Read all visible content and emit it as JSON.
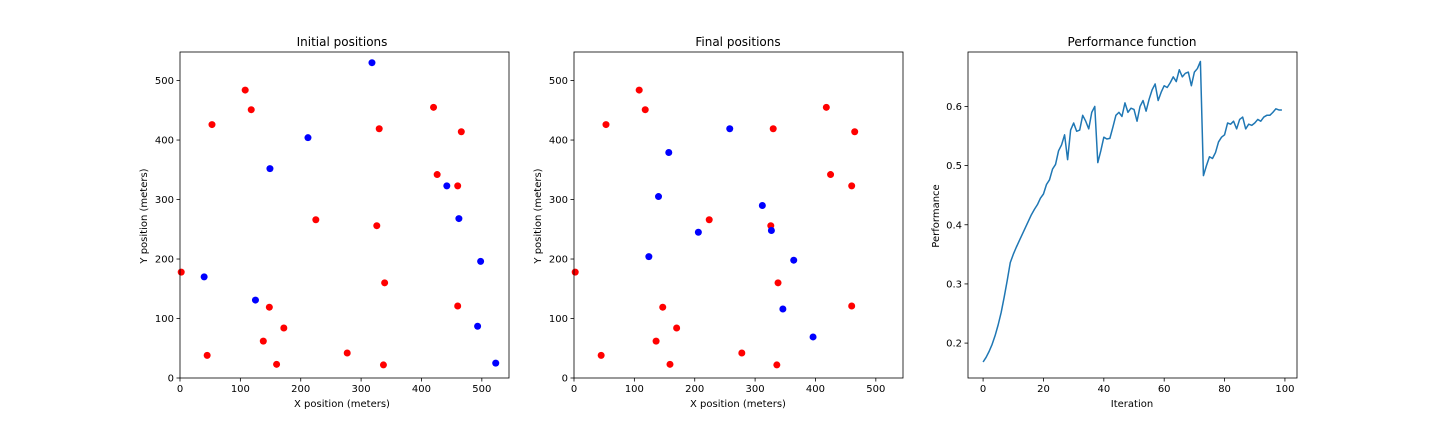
{
  "chart_data": [
    {
      "type": "scatter",
      "title": "Initial positions",
      "xlabel": "X position (meters)",
      "ylabel": "Y position (meters)",
      "xlim": [
        0,
        545
      ],
      "ylim": [
        0,
        548
      ],
      "xticks": [
        0,
        100,
        200,
        300,
        400,
        500
      ],
      "yticks": [
        0,
        100,
        200,
        300,
        400,
        500
      ],
      "grid": false,
      "series": [
        {
          "color": "#ff0000",
          "points": [
            [
              2,
              178
            ],
            [
              45,
              38
            ],
            [
              53,
              426
            ],
            [
              108,
              484
            ],
            [
              118,
              451
            ],
            [
              138,
              62
            ],
            [
              148,
              119
            ],
            [
              160,
              23
            ],
            [
              172,
              84
            ],
            [
              225,
              266
            ],
            [
              277,
              42
            ],
            [
              326,
              256
            ],
            [
              330,
              419
            ],
            [
              337,
              22
            ],
            [
              339,
              160
            ],
            [
              420,
              455
            ],
            [
              426,
              342
            ],
            [
              460,
              323
            ],
            [
              460,
              121
            ],
            [
              466,
              414
            ]
          ]
        },
        {
          "color": "#0000ff",
          "points": [
            [
              40,
              170
            ],
            [
              125,
              131
            ],
            [
              149,
              352
            ],
            [
              212,
              404
            ],
            [
              318,
              530
            ],
            [
              442,
              323
            ],
            [
              462,
              268
            ],
            [
              498,
              196
            ],
            [
              493,
              87
            ],
            [
              523,
              25
            ]
          ]
        }
      ]
    },
    {
      "type": "scatter",
      "title": "Final positions",
      "xlabel": "X position (meters)",
      "ylabel": "Y position (meters)",
      "xlim": [
        0,
        545
      ],
      "ylim": [
        0,
        548
      ],
      "xticks": [
        0,
        100,
        200,
        300,
        400,
        500
      ],
      "yticks": [
        0,
        100,
        200,
        300,
        400,
        500
      ],
      "grid": false,
      "series": [
        {
          "color": "#ff0000",
          "points": [
            [
              2,
              178
            ],
            [
              45,
              38
            ],
            [
              53,
              426
            ],
            [
              108,
              484
            ],
            [
              118,
              451
            ],
            [
              136,
              62
            ],
            [
              147,
              119
            ],
            [
              159,
              23
            ],
            [
              170,
              84
            ],
            [
              224,
              266
            ],
            [
              278,
              42
            ],
            [
              326,
              256
            ],
            [
              330,
              419
            ],
            [
              336,
              22
            ],
            [
              338,
              160
            ],
            [
              418,
              455
            ],
            [
              425,
              342
            ],
            [
              460,
              323
            ],
            [
              460,
              121
            ],
            [
              465,
              414
            ]
          ]
        },
        {
          "color": "#0000ff",
          "points": [
            [
              124,
              204
            ],
            [
              140,
              305
            ],
            [
              157,
              379
            ],
            [
              206,
              245
            ],
            [
              258,
              419
            ],
            [
              312,
              290
            ],
            [
              327,
              248
            ],
            [
              346,
              116
            ],
            [
              364,
              198
            ],
            [
              396,
              69
            ]
          ]
        }
      ]
    },
    {
      "type": "line",
      "title": "Performance function",
      "xlabel": "Iteration",
      "ylabel": "Performance",
      "xlim": [
        -5,
        104
      ],
      "ylim": [
        0.141,
        0.692
      ],
      "xticks": [
        0,
        20,
        40,
        60,
        80,
        100
      ],
      "yticks": [
        0.2,
        0.3,
        0.4,
        0.5,
        0.6
      ],
      "grid": false,
      "series": [
        {
          "color": "#1f77b4",
          "x": [
            0,
            1,
            2,
            3,
            4,
            5,
            6,
            7,
            8,
            9,
            10,
            11,
            12,
            13,
            14,
            15,
            16,
            17,
            18,
            19,
            20,
            21,
            22,
            23,
            24,
            25,
            26,
            27,
            28,
            29,
            30,
            31,
            32,
            33,
            34,
            35,
            36,
            37,
            38,
            39,
            40,
            41,
            42,
            43,
            44,
            45,
            46,
            47,
            48,
            49,
            50,
            51,
            52,
            53,
            54,
            55,
            56,
            57,
            58,
            59,
            60,
            61,
            62,
            63,
            64,
            65,
            66,
            67,
            68,
            69,
            70,
            71,
            72,
            73,
            74,
            75,
            76,
            77,
            78,
            79,
            80,
            81,
            82,
            83,
            84,
            85,
            86,
            87,
            88,
            89,
            90,
            91,
            92,
            93,
            94,
            95,
            96,
            97,
            98,
            99
          ],
          "values": [
            0.168,
            0.176,
            0.186,
            0.198,
            0.213,
            0.231,
            0.252,
            0.278,
            0.306,
            0.336,
            0.35,
            0.362,
            0.373,
            0.384,
            0.395,
            0.406,
            0.417,
            0.426,
            0.434,
            0.445,
            0.452,
            0.468,
            0.476,
            0.494,
            0.502,
            0.525,
            0.535,
            0.552,
            0.51,
            0.56,
            0.572,
            0.558,
            0.56,
            0.585,
            0.575,
            0.562,
            0.59,
            0.6,
            0.505,
            0.525,
            0.548,
            0.545,
            0.546,
            0.565,
            0.585,
            0.59,
            0.583,
            0.606,
            0.59,
            0.597,
            0.595,
            0.575,
            0.6,
            0.61,
            0.592,
            0.612,
            0.628,
            0.638,
            0.61,
            0.624,
            0.635,
            0.632,
            0.64,
            0.65,
            0.642,
            0.662,
            0.65,
            0.656,
            0.658,
            0.635,
            0.658,
            0.664,
            0.676,
            0.483,
            0.5,
            0.515,
            0.512,
            0.522,
            0.54,
            0.548,
            0.552,
            0.572,
            0.57,
            0.575,
            0.562,
            0.578,
            0.582,
            0.562,
            0.57,
            0.568,
            0.572,
            0.578,
            0.575,
            0.582,
            0.585,
            0.585,
            0.59,
            0.596,
            0.594,
            0.594
          ]
        }
      ]
    }
  ]
}
